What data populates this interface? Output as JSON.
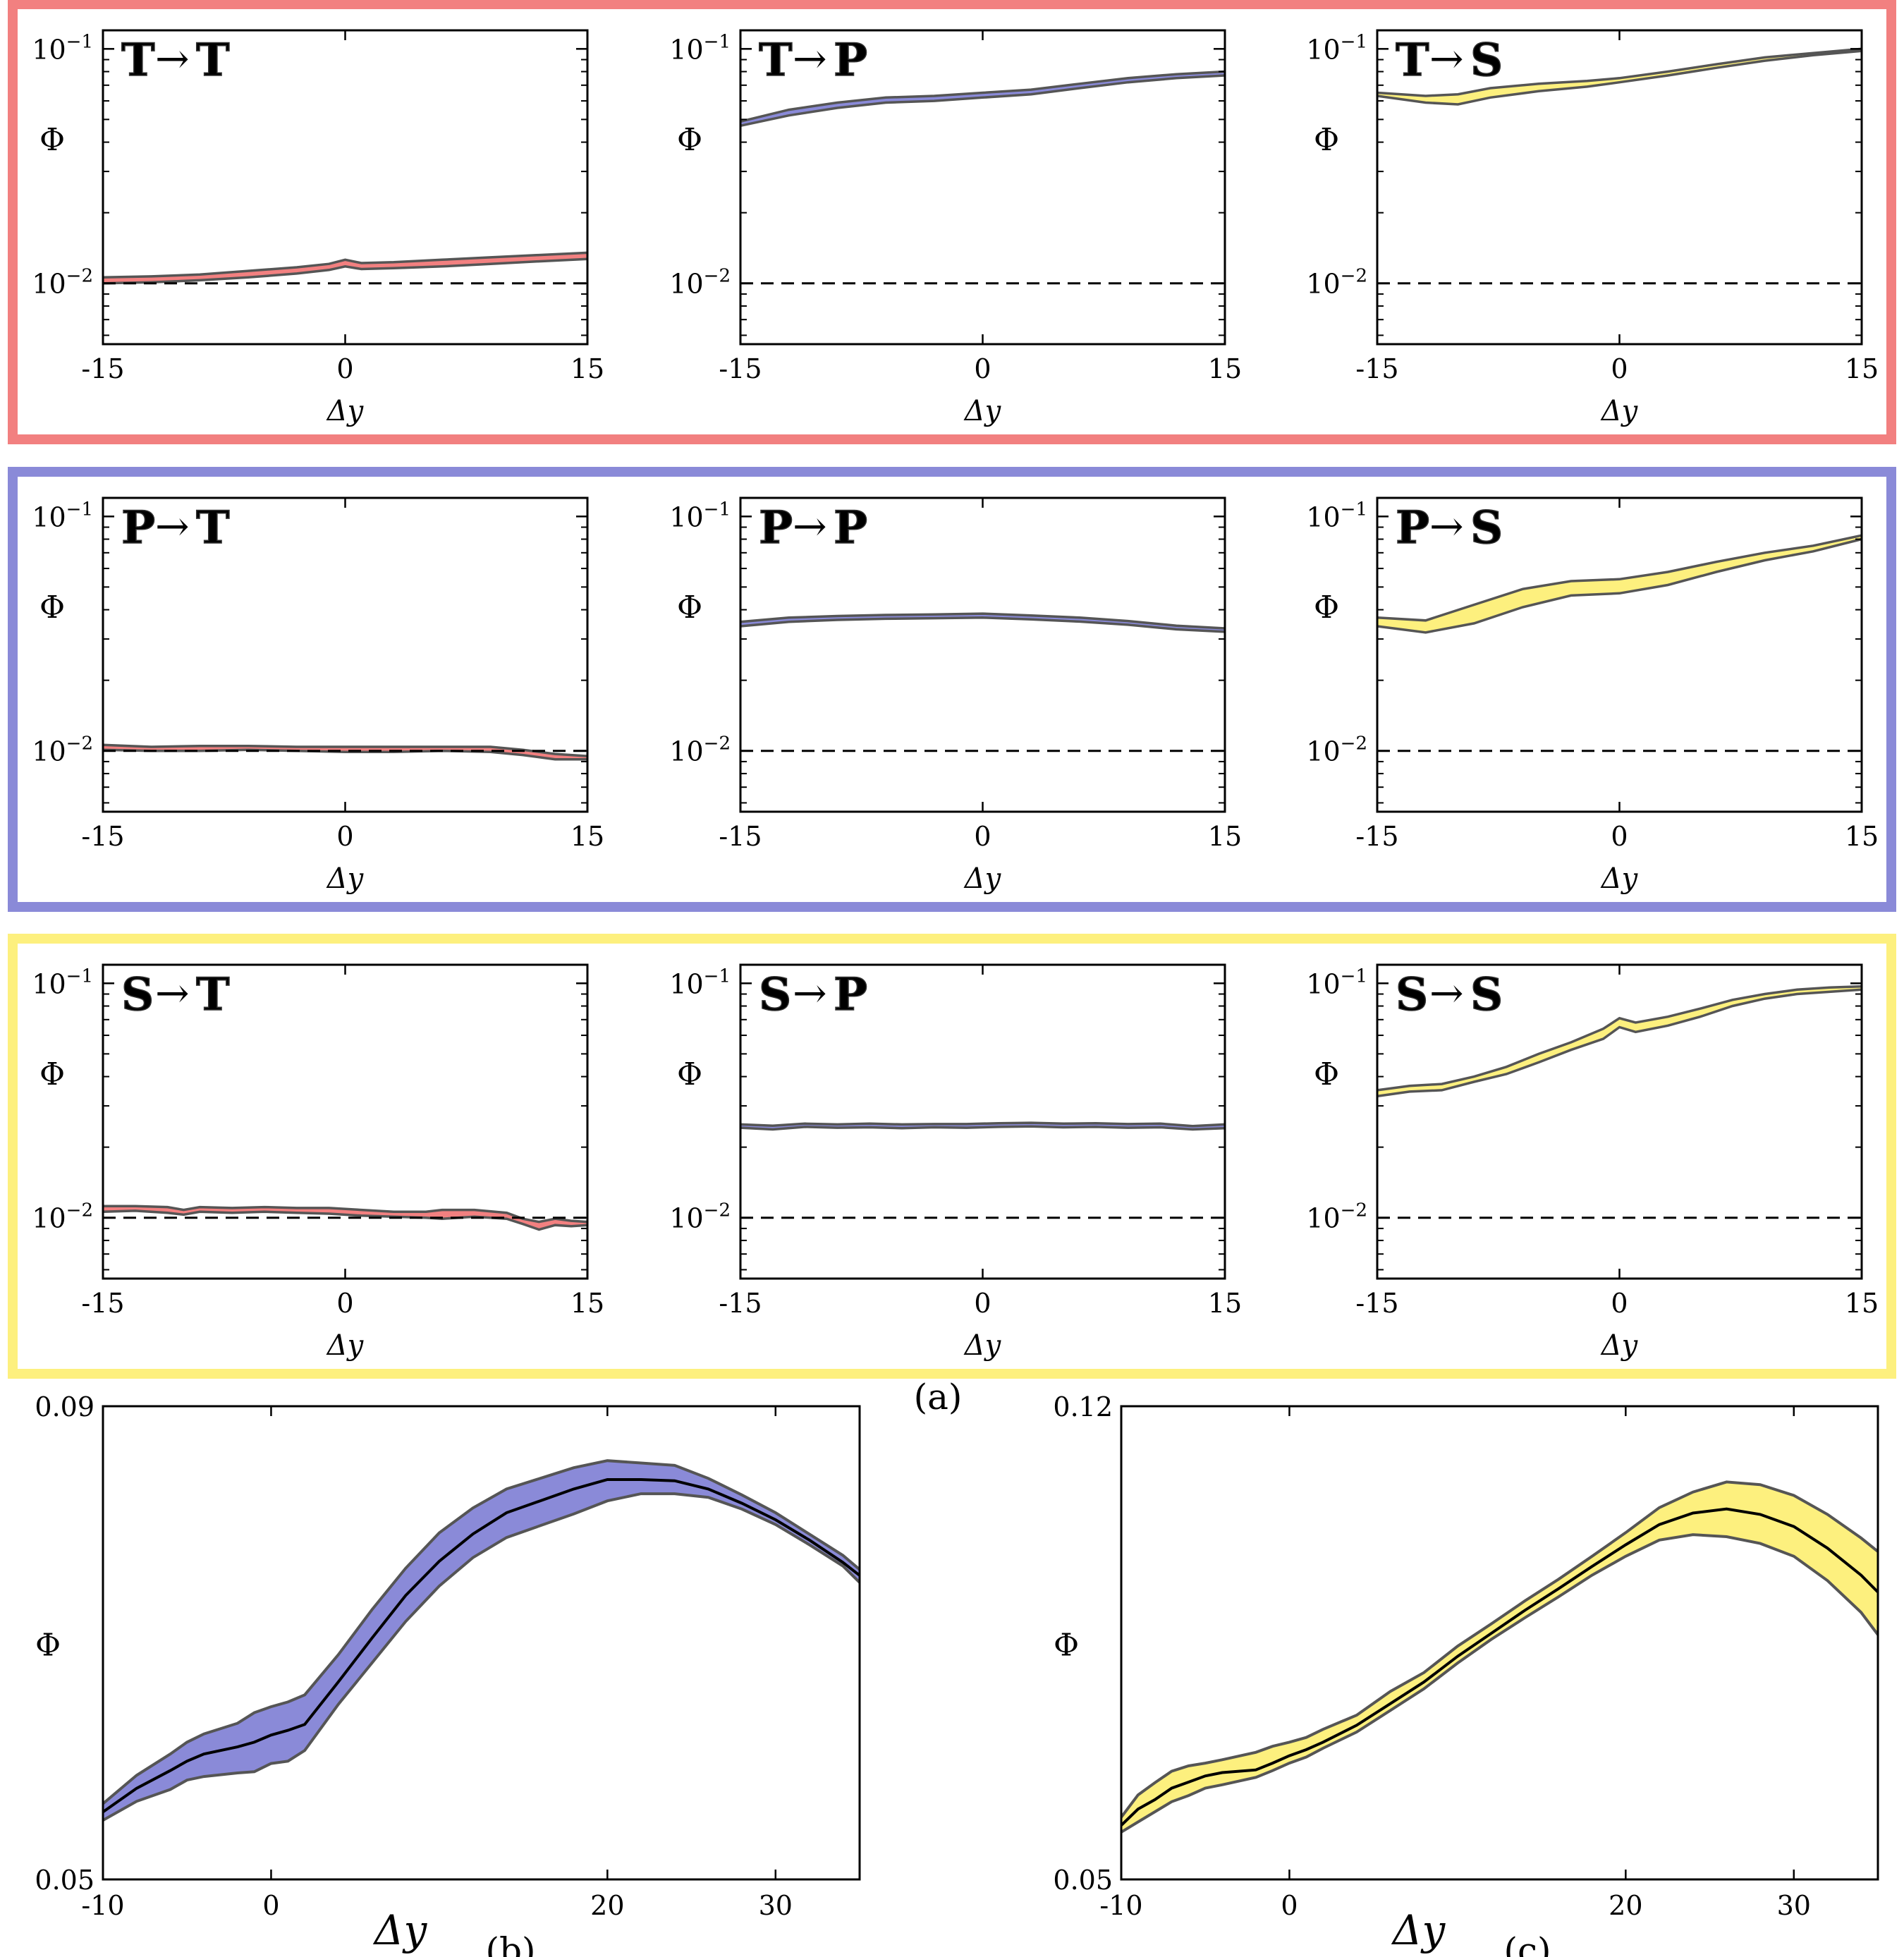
{
  "figure": {
    "colors": {
      "T": "#f28080",
      "P": "#8a8ad8",
      "S": "#fdf07e",
      "T_text": "#cc0000",
      "P_text": "#1a1aa0",
      "S_text": "#f5e000",
      "edge": "#555555"
    },
    "caption_a": "(a)",
    "caption_b": "(b)",
    "caption_c": "(c)",
    "arrow": "→"
  },
  "chart_data": [
    {
      "id": "TT",
      "type": "area",
      "row_box": "T",
      "from": "T",
      "to": "T",
      "band_color": "T",
      "xlabel": "Δy",
      "ylabel": "Φ",
      "yscale": "log",
      "xlim": [
        -15,
        15
      ],
      "ylim": [
        0.0055,
        0.12
      ],
      "xticks": [
        "-15",
        "0",
        "15"
      ],
      "yticks": [
        {
          "base": "10",
          "exp": "−1",
          "value": 0.1
        },
        {
          "base": "10",
          "exp": "−2",
          "value": 0.01
        }
      ],
      "ref_line": 0.01,
      "x": [
        -15,
        -12,
        -9,
        -6,
        -3,
        -1,
        0,
        1,
        3,
        6,
        9,
        12,
        15
      ],
      "lower": [
        0.01,
        0.0101,
        0.0103,
        0.0106,
        0.011,
        0.0114,
        0.0118,
        0.0115,
        0.0116,
        0.0118,
        0.0121,
        0.0124,
        0.0127
      ],
      "upper": [
        0.0106,
        0.0107,
        0.0109,
        0.0113,
        0.0117,
        0.0121,
        0.0126,
        0.0122,
        0.0123,
        0.0126,
        0.0129,
        0.0132,
        0.0135
      ]
    },
    {
      "id": "TP",
      "type": "area",
      "row_box": "T",
      "from": "T",
      "to": "P",
      "band_color": "P",
      "xlabel": "Δy",
      "ylabel": "Φ",
      "yscale": "log",
      "xlim": [
        -15,
        15
      ],
      "ylim": [
        0.0055,
        0.12
      ],
      "xticks": [
        "-15",
        "0",
        "15"
      ],
      "yticks": [
        {
          "base": "10",
          "exp": "−1",
          "value": 0.1
        },
        {
          "base": "10",
          "exp": "−2",
          "value": 0.01
        }
      ],
      "ref_line": 0.01,
      "x": [
        -15,
        -12,
        -9,
        -6,
        -3,
        0,
        3,
        6,
        9,
        12,
        15
      ],
      "lower": [
        0.047,
        0.052,
        0.056,
        0.059,
        0.06,
        0.062,
        0.064,
        0.068,
        0.072,
        0.075,
        0.077
      ],
      "upper": [
        0.049,
        0.055,
        0.059,
        0.062,
        0.063,
        0.065,
        0.067,
        0.071,
        0.075,
        0.078,
        0.08
      ]
    },
    {
      "id": "TS",
      "type": "area",
      "row_box": "T",
      "from": "T",
      "to": "S",
      "band_color": "S",
      "xlabel": "Δy",
      "ylabel": "Φ",
      "yscale": "log",
      "xlim": [
        -15,
        15
      ],
      "ylim": [
        0.0055,
        0.12
      ],
      "xticks": [
        "-15",
        "0",
        "15"
      ],
      "yticks": [
        {
          "base": "10",
          "exp": "−1",
          "value": 0.1
        },
        {
          "base": "10",
          "exp": "−2",
          "value": 0.01
        }
      ],
      "ref_line": 0.01,
      "x": [
        -15,
        -12,
        -10,
        -8,
        -5,
        -2,
        0,
        3,
        6,
        9,
        12,
        15
      ],
      "lower": [
        0.063,
        0.059,
        0.058,
        0.062,
        0.066,
        0.069,
        0.072,
        0.077,
        0.083,
        0.089,
        0.094,
        0.098
      ],
      "upper": [
        0.065,
        0.063,
        0.064,
        0.068,
        0.071,
        0.073,
        0.075,
        0.08,
        0.086,
        0.092,
        0.096,
        0.1
      ]
    },
    {
      "id": "PT",
      "type": "area",
      "row_box": "P",
      "from": "P",
      "to": "T",
      "band_color": "T",
      "xlabel": "Δy",
      "ylabel": "Φ",
      "yscale": "log",
      "xlim": [
        -15,
        15
      ],
      "ylim": [
        0.0055,
        0.12
      ],
      "xticks": [
        "-15",
        "0",
        "15"
      ],
      "yticks": [
        {
          "base": "10",
          "exp": "−1",
          "value": 0.1
        },
        {
          "base": "10",
          "exp": "−2",
          "value": 0.01
        }
      ],
      "ref_line": 0.01,
      "x": [
        -15,
        -12,
        -9,
        -6,
        -3,
        0,
        3,
        6,
        9,
        11,
        13,
        15
      ],
      "lower": [
        0.0101,
        0.01,
        0.01,
        0.0101,
        0.01,
        0.0099,
        0.0099,
        0.01,
        0.0099,
        0.0096,
        0.0092,
        0.0092
      ],
      "upper": [
        0.0106,
        0.0104,
        0.0105,
        0.0105,
        0.0104,
        0.0104,
        0.0104,
        0.0104,
        0.0104,
        0.0101,
        0.0097,
        0.0095
      ]
    },
    {
      "id": "PP",
      "type": "area",
      "row_box": "P",
      "from": "P",
      "to": "P",
      "band_color": "P",
      "xlabel": "Δy",
      "ylabel": "Φ",
      "yscale": "log",
      "xlim": [
        -15,
        15
      ],
      "ylim": [
        0.0055,
        0.12
      ],
      "xticks": [
        "-15",
        "0",
        "15"
      ],
      "yticks": [
        {
          "base": "10",
          "exp": "−1",
          "value": 0.1
        },
        {
          "base": "10",
          "exp": "−2",
          "value": 0.01
        }
      ],
      "ref_line": 0.01,
      "x": [
        -15,
        -12,
        -9,
        -6,
        -3,
        0,
        3,
        6,
        9,
        12,
        15
      ],
      "lower": [
        0.034,
        0.0355,
        0.0362,
        0.0366,
        0.0368,
        0.037,
        0.0364,
        0.0356,
        0.0345,
        0.033,
        0.0322
      ],
      "upper": [
        0.0355,
        0.037,
        0.0376,
        0.038,
        0.0382,
        0.0385,
        0.0378,
        0.037,
        0.0358,
        0.0342,
        0.0333
      ]
    },
    {
      "id": "PS",
      "type": "area",
      "row_box": "P",
      "from": "P",
      "to": "S",
      "band_color": "S",
      "xlabel": "Δy",
      "ylabel": "Φ",
      "yscale": "log",
      "xlim": [
        -15,
        15
      ],
      "ylim": [
        0.0055,
        0.12
      ],
      "xticks": [
        "-15",
        "0",
        "15"
      ],
      "yticks": [
        {
          "base": "10",
          "exp": "−1",
          "value": 0.1
        },
        {
          "base": "10",
          "exp": "−2",
          "value": 0.01
        }
      ],
      "ref_line": 0.01,
      "x": [
        -15,
        -12,
        -9,
        -6,
        -3,
        0,
        3,
        6,
        9,
        12,
        15
      ],
      "lower": [
        0.034,
        0.032,
        0.035,
        0.041,
        0.046,
        0.047,
        0.051,
        0.058,
        0.065,
        0.071,
        0.08
      ],
      "upper": [
        0.037,
        0.036,
        0.042,
        0.049,
        0.053,
        0.054,
        0.058,
        0.064,
        0.07,
        0.075,
        0.083
      ]
    },
    {
      "id": "ST",
      "type": "area",
      "row_box": "S",
      "from": "S",
      "to": "T",
      "band_color": "T",
      "xlabel": "Δy",
      "ylabel": "Φ",
      "yscale": "log",
      "xlim": [
        -15,
        15
      ],
      "ylim": [
        0.0055,
        0.12
      ],
      "xticks": [
        "-15",
        "0",
        "15"
      ],
      "yticks": [
        {
          "base": "10",
          "exp": "−1",
          "value": 0.1
        },
        {
          "base": "10",
          "exp": "−2",
          "value": 0.01
        }
      ],
      "ref_line": 0.01,
      "x": [
        -15,
        -13,
        -11,
        -10,
        -9,
        -7,
        -5,
        -3,
        -1,
        1,
        3,
        5,
        6,
        8,
        10,
        11,
        12,
        13,
        14,
        15
      ],
      "lower": [
        0.0106,
        0.0107,
        0.0105,
        0.0103,
        0.0106,
        0.0105,
        0.0106,
        0.0105,
        0.0104,
        0.0102,
        0.0101,
        0.01,
        0.0099,
        0.0101,
        0.0099,
        0.0094,
        0.0089,
        0.0093,
        0.0092,
        0.0093
      ],
      "upper": [
        0.0112,
        0.0112,
        0.0111,
        0.0108,
        0.0111,
        0.011,
        0.0111,
        0.011,
        0.011,
        0.0108,
        0.0106,
        0.0106,
        0.0108,
        0.0108,
        0.0105,
        0.0099,
        0.0096,
        0.0099,
        0.0097,
        0.0096
      ]
    },
    {
      "id": "SP",
      "type": "area",
      "row_box": "S",
      "from": "S",
      "to": "P",
      "band_color": "P",
      "xlabel": "Δy",
      "ylabel": "Φ",
      "yscale": "log",
      "xlim": [
        -15,
        15
      ],
      "ylim": [
        0.0055,
        0.12
      ],
      "xticks": [
        "-15",
        "0",
        "15"
      ],
      "yticks": [
        {
          "base": "10",
          "exp": "−1",
          "value": 0.1
        },
        {
          "base": "10",
          "exp": "−2",
          "value": 0.01
        }
      ],
      "ref_line": 0.01,
      "x": [
        -15,
        -13,
        -11,
        -9,
        -7,
        -5,
        -3,
        -1,
        1,
        3,
        5,
        7,
        9,
        11,
        13,
        15
      ],
      "lower": [
        0.0242,
        0.0238,
        0.0244,
        0.0242,
        0.0243,
        0.0241,
        0.0243,
        0.0242,
        0.0244,
        0.0245,
        0.0243,
        0.0244,
        0.0242,
        0.0243,
        0.0238,
        0.0241
      ],
      "upper": [
        0.025,
        0.0247,
        0.0252,
        0.025,
        0.0252,
        0.025,
        0.0251,
        0.0251,
        0.0253,
        0.0254,
        0.0252,
        0.0253,
        0.0251,
        0.0252,
        0.0246,
        0.025
      ]
    },
    {
      "id": "SS",
      "type": "area",
      "row_box": "S",
      "from": "S",
      "to": "S",
      "band_color": "S",
      "xlabel": "Δy",
      "ylabel": "Φ",
      "yscale": "log",
      "xlim": [
        -15,
        15
      ],
      "ylim": [
        0.0055,
        0.12
      ],
      "xticks": [
        "-15",
        "0",
        "15"
      ],
      "yticks": [
        {
          "base": "10",
          "exp": "−1",
          "value": 0.1
        },
        {
          "base": "10",
          "exp": "−2",
          "value": 0.01
        }
      ],
      "ref_line": 0.01,
      "x": [
        -15,
        -13,
        -11,
        -9,
        -7,
        -5,
        -3,
        -1,
        0,
        1,
        3,
        5,
        7,
        9,
        11,
        13,
        15
      ],
      "lower": [
        0.033,
        0.0345,
        0.035,
        0.038,
        0.041,
        0.046,
        0.052,
        0.058,
        0.065,
        0.062,
        0.066,
        0.072,
        0.08,
        0.086,
        0.09,
        0.092,
        0.094
      ],
      "upper": [
        0.035,
        0.0365,
        0.0372,
        0.04,
        0.044,
        0.05,
        0.056,
        0.064,
        0.071,
        0.068,
        0.072,
        0.078,
        0.085,
        0.09,
        0.094,
        0.096,
        0.097
      ]
    },
    {
      "id": "b",
      "type": "area",
      "band_color": "P",
      "xlabel": "Δy",
      "ylabel": "Φ",
      "yscale": "linear",
      "xlim": [
        -10,
        35
      ],
      "ylim": [
        0.05,
        0.09
      ],
      "xticks": [
        "-10",
        "0",
        "20",
        "30"
      ],
      "xtick_values": [
        -10,
        0,
        20,
        30
      ],
      "yticks": [
        "0.05",
        "0.09"
      ],
      "ytick_values": [
        0.05,
        0.09
      ],
      "x": [
        -10,
        -8,
        -6,
        -5,
        -4,
        -2,
        -1,
        0,
        1,
        2,
        4,
        6,
        8,
        10,
        12,
        14,
        16,
        18,
        20,
        22,
        24,
        26,
        28,
        30,
        32,
        34,
        35
      ],
      "mean": [
        0.0557,
        0.0577,
        0.0592,
        0.06,
        0.0606,
        0.0612,
        0.0616,
        0.0622,
        0.0626,
        0.0631,
        0.0667,
        0.0704,
        0.074,
        0.0769,
        0.0792,
        0.081,
        0.082,
        0.083,
        0.0838,
        0.0838,
        0.0837,
        0.083,
        0.0818,
        0.0804,
        0.0787,
        0.0768,
        0.0757
      ],
      "lower": [
        0.055,
        0.0566,
        0.0576,
        0.0584,
        0.0587,
        0.059,
        0.0591,
        0.0598,
        0.06,
        0.0609,
        0.0648,
        0.0683,
        0.0718,
        0.0748,
        0.0772,
        0.0789,
        0.0799,
        0.0809,
        0.082,
        0.0826,
        0.0826,
        0.0823,
        0.0813,
        0.08,
        0.0783,
        0.0765,
        0.0751
      ],
      "upper": [
        0.0564,
        0.0588,
        0.0606,
        0.0616,
        0.0623,
        0.0632,
        0.0641,
        0.0646,
        0.065,
        0.0656,
        0.069,
        0.0728,
        0.0763,
        0.0793,
        0.0814,
        0.083,
        0.0839,
        0.0848,
        0.0854,
        0.0852,
        0.085,
        0.0839,
        0.0825,
        0.081,
        0.0792,
        0.0774,
        0.0762
      ],
      "caption": "(b)"
    },
    {
      "id": "c",
      "type": "area",
      "band_color": "S",
      "xlabel": "Δy",
      "ylabel": "Φ",
      "yscale": "linear",
      "xlim": [
        -10,
        35
      ],
      "ylim": [
        0.05,
        0.12
      ],
      "xticks": [
        "-10",
        "0",
        "20",
        "30"
      ],
      "xtick_values": [
        -10,
        0,
        20,
        30
      ],
      "yticks": [
        "0.05",
        "0.12"
      ],
      "ytick_values": [
        0.05,
        0.12
      ],
      "x": [
        -10,
        -9,
        -8,
        -7,
        -6,
        -5,
        -4,
        -2,
        -1,
        0,
        1,
        2,
        4,
        6,
        8,
        10,
        12,
        14,
        16,
        18,
        20,
        22,
        24,
        26,
        28,
        30,
        32,
        34,
        35
      ],
      "mean": [
        0.058,
        0.0604,
        0.0618,
        0.0635,
        0.0644,
        0.0653,
        0.0658,
        0.0662,
        0.0672,
        0.0683,
        0.0692,
        0.0703,
        0.0728,
        0.076,
        0.0792,
        0.083,
        0.0864,
        0.0898,
        0.093,
        0.0963,
        0.0995,
        0.1025,
        0.1042,
        0.1048,
        0.104,
        0.1022,
        0.099,
        0.095,
        0.0925
      ],
      "lower": [
        0.057,
        0.0585,
        0.06,
        0.0615,
        0.0624,
        0.0635,
        0.064,
        0.0651,
        0.0661,
        0.0672,
        0.0681,
        0.0694,
        0.0718,
        0.075,
        0.0782,
        0.082,
        0.0855,
        0.0887,
        0.0918,
        0.095,
        0.0978,
        0.1002,
        0.101,
        0.1007,
        0.0997,
        0.0978,
        0.0942,
        0.0895,
        0.0862
      ],
      "upper": [
        0.0592,
        0.0625,
        0.0643,
        0.066,
        0.0668,
        0.0672,
        0.0677,
        0.0688,
        0.0697,
        0.0703,
        0.071,
        0.0722,
        0.0743,
        0.0778,
        0.0806,
        0.0845,
        0.0878,
        0.0912,
        0.0944,
        0.0978,
        0.1013,
        0.105,
        0.1073,
        0.1088,
        0.1084,
        0.1068,
        0.104,
        0.1005,
        0.0985
      ],
      "caption": "(c)"
    }
  ]
}
